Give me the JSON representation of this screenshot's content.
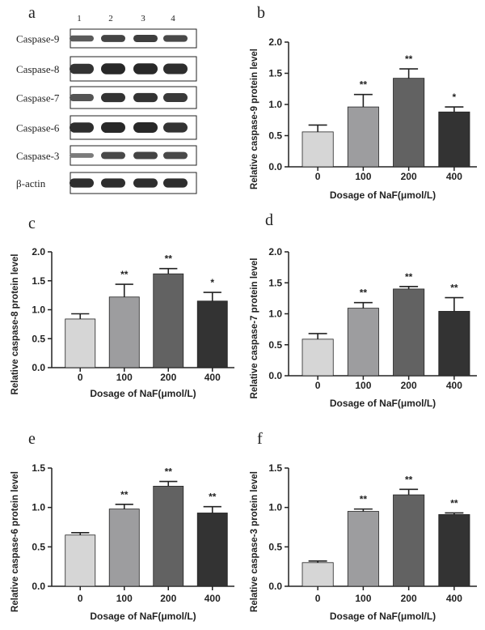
{
  "panel_labels": {
    "a": "a",
    "b": "b",
    "c": "c",
    "d": "d",
    "e": "e",
    "f": "f"
  },
  "blot": {
    "lane_numbers": [
      "1",
      "2",
      "3",
      "4"
    ],
    "proteins": [
      "Caspase-9",
      "Caspase-8",
      "Caspase-7",
      "Caspase-6",
      "Caspase-3",
      "β-actin"
    ],
    "band_intensity": [
      [
        0.55,
        0.75,
        0.8,
        0.7
      ],
      [
        0.9,
        1.0,
        1.0,
        0.95
      ],
      [
        0.6,
        0.9,
        0.9,
        0.85
      ],
      [
        0.95,
        1.0,
        1.0,
        0.9
      ],
      [
        0.25,
        0.7,
        0.75,
        0.7
      ],
      [
        0.95,
        0.95,
        0.95,
        0.95
      ]
    ]
  },
  "chart_data": [
    {
      "type": "bar",
      "panel": "b",
      "title": "",
      "categories": [
        "0",
        "100",
        "200",
        "400"
      ],
      "values": [
        0.56,
        0.96,
        1.42,
        0.88
      ],
      "errors": [
        0.11,
        0.2,
        0.15,
        0.08
      ],
      "significance": [
        "",
        "**",
        "**",
        "*"
      ],
      "xlabel": "Dosage of NaF(μmol/L)",
      "ylabel": "Relative caspase-9 protein level",
      "ylim": [
        0,
        2.0
      ],
      "yticks": [
        "0.0",
        "0.5",
        "1.0",
        "1.5",
        "2.0"
      ],
      "bar_colors": [
        "#d6d6d6",
        "#9d9d9f",
        "#626262",
        "#333333"
      ]
    },
    {
      "type": "bar",
      "panel": "c",
      "title": "",
      "categories": [
        "0",
        "100",
        "200",
        "400"
      ],
      "values": [
        0.84,
        1.22,
        1.62,
        1.15
      ],
      "errors": [
        0.09,
        0.22,
        0.09,
        0.15
      ],
      "significance": [
        "",
        "**",
        "**",
        "*"
      ],
      "xlabel": "Dosage of NaF(μmol/L)",
      "ylabel": "Relative caspase-8 protein level",
      "ylim": [
        0,
        2.0
      ],
      "yticks": [
        "0.0",
        "0.5",
        "1.0",
        "1.5",
        "2.0"
      ],
      "bar_colors": [
        "#d6d6d6",
        "#9d9d9f",
        "#626262",
        "#333333"
      ]
    },
    {
      "type": "bar",
      "panel": "d",
      "title": "",
      "categories": [
        "0",
        "100",
        "200",
        "400"
      ],
      "values": [
        0.59,
        1.09,
        1.4,
        1.04
      ],
      "errors": [
        0.09,
        0.09,
        0.04,
        0.22
      ],
      "significance": [
        "",
        "**",
        "**",
        "**"
      ],
      "xlabel": "Dosage of NaF(μmol/L)",
      "ylabel": "Relative caspase-7 protein level",
      "ylim": [
        0,
        2.0
      ],
      "yticks": [
        "0.0",
        "0.5",
        "1.0",
        "1.5",
        "2.0"
      ],
      "bar_colors": [
        "#d6d6d6",
        "#9d9d9f",
        "#626262",
        "#333333"
      ]
    },
    {
      "type": "bar",
      "panel": "e",
      "title": "",
      "categories": [
        "0",
        "100",
        "200",
        "400"
      ],
      "values": [
        0.65,
        0.98,
        1.27,
        0.93
      ],
      "errors": [
        0.03,
        0.06,
        0.06,
        0.08
      ],
      "significance": [
        "",
        "**",
        "**",
        "**"
      ],
      "xlabel": "Dosage of NaF(μmol/L)",
      "ylabel": "Relative caspase-6 protein level",
      "ylim": [
        0,
        1.5
      ],
      "yticks": [
        "0.0",
        "0.5",
        "1.0",
        "1.5"
      ],
      "bar_colors": [
        "#d6d6d6",
        "#9d9d9f",
        "#626262",
        "#333333"
      ]
    },
    {
      "type": "bar",
      "panel": "f",
      "title": "",
      "categories": [
        "0",
        "100",
        "200",
        "400"
      ],
      "values": [
        0.3,
        0.95,
        1.16,
        0.91
      ],
      "errors": [
        0.02,
        0.03,
        0.07,
        0.02
      ],
      "significance": [
        "",
        "**",
        "**",
        "**"
      ],
      "xlabel": "Dosage of NaF(μmol/L)",
      "ylabel": "Relative caspase-3 protein level",
      "ylim": [
        0,
        1.5
      ],
      "yticks": [
        "0.0",
        "0.5",
        "1.0",
        "1.5"
      ],
      "bar_colors": [
        "#d6d6d6",
        "#9d9d9f",
        "#626262",
        "#333333"
      ]
    }
  ]
}
